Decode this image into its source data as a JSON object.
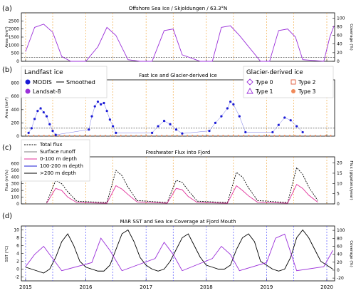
{
  "x_axis": {
    "years": [
      "2015",
      "2016",
      "2017",
      "2018",
      "2019",
      "2020"
    ],
    "range": [
      2014.93,
      2020.13
    ]
  },
  "chart_data": [
    {
      "panel": "(a)",
      "type": "line",
      "title": "Offshore Sea Ice / Skjoldungen / 63.3°N",
      "ylabel_left": "Area (km²)",
      "ylabel_right": "Coverage (%)",
      "ylim": [
        0,
        3000
      ],
      "yticks": [
        "0",
        "500",
        "1000",
        "1500",
        "2000",
        "2500"
      ],
      "y2ticks": [
        "0",
        "20",
        "40",
        "60",
        "80",
        "100"
      ],
      "threshold": 250,
      "series": [
        {
          "name": "Smoothed",
          "color": "#9b30d9",
          "x": [
            2015.0,
            2015.15,
            2015.3,
            2015.45,
            2015.6,
            2015.75,
            2016.0,
            2016.2,
            2016.35,
            2016.5,
            2016.7,
            2016.9,
            2017.1,
            2017.3,
            2017.45,
            2017.6,
            2017.9,
            2018.1,
            2018.25,
            2018.4,
            2018.55,
            2018.9,
            2019.05,
            2019.2,
            2019.35,
            2019.48,
            2019.6,
            2019.95,
            2020.05,
            2020.12
          ],
          "y": [
            600,
            2100,
            2300,
            1800,
            300,
            0,
            0,
            900,
            2100,
            1600,
            100,
            0,
            0,
            1900,
            2000,
            400,
            0,
            0,
            2100,
            2200,
            1600,
            0,
            0,
            1900,
            2000,
            1500,
            100,
            0,
            1500,
            2200
          ]
        }
      ]
    },
    {
      "panel": "(b)",
      "type": "scatter",
      "title": "Fast Ice and Glacier-derived Ice",
      "ylabel_left": "Area (km²)",
      "ylim": [
        0,
        850
      ],
      "yticks": [
        "0",
        "200",
        "400",
        "600",
        "800"
      ],
      "threshold": 120,
      "legend_landfast": {
        "title": "Landfast ice",
        "items": [
          "MODIS",
          "Landsat-8",
          "Smoothed"
        ]
      },
      "legend_glacier": {
        "title": "Glacier-derived ice",
        "items": [
          "Type 0",
          "Type 1",
          "Type 2",
          "Type 3"
        ]
      },
      "series": [
        {
          "name": "MODIS",
          "color": "#1a1ad6",
          "x": [
            2015.05,
            2015.1,
            2015.15,
            2015.2,
            2015.25,
            2015.3,
            2015.35,
            2015.4,
            2015.45,
            2015.5,
            2016.05,
            2016.1,
            2016.15,
            2016.2,
            2016.25,
            2016.3,
            2016.35,
            2016.4,
            2016.45,
            2016.5,
            2017.1,
            2017.2,
            2017.3,
            2017.4,
            2017.5,
            2017.6,
            2018.05,
            2018.15,
            2018.25,
            2018.35,
            2018.4,
            2018.45,
            2018.55,
            2018.65,
            2019.1,
            2019.2,
            2019.3,
            2019.4,
            2019.5,
            2019.6
          ],
          "y": [
            50,
            120,
            260,
            380,
            420,
            360,
            300,
            180,
            80,
            20,
            100,
            300,
            450,
            520,
            480,
            500,
            380,
            250,
            150,
            50,
            50,
            150,
            230,
            180,
            100,
            40,
            80,
            200,
            300,
            420,
            520,
            480,
            300,
            60,
            60,
            170,
            280,
            240,
            150,
            60
          ]
        }
      ]
    },
    {
      "panel": "(c)",
      "type": "line",
      "title": "Freshwater Flux into Fjord",
      "ylabel_left": "Flux (m³/s)",
      "ylabel_right": "Flux (gigatons/year)",
      "ylim": [
        0,
        700
      ],
      "yticks": [
        "0",
        "100",
        "200",
        "300",
        "400",
        "500",
        "600"
      ],
      "y2ticks": [
        "0",
        "5",
        "10",
        "15",
        "20"
      ],
      "legend": [
        "Total flux",
        "Surface runoff",
        "0-100 m depth",
        "100-200 m depth",
        ">200 m depth"
      ],
      "series": [
        {
          "name": "Total flux",
          "dash": "dashed",
          "x": [
            2015.35,
            2015.5,
            2015.6,
            2015.7,
            2015.85,
            2016.35,
            2016.5,
            2016.6,
            2016.7,
            2016.85,
            2017.35,
            2017.5,
            2017.6,
            2017.7,
            2017.85,
            2018.35,
            2018.5,
            2018.6,
            2018.7,
            2018.85,
            2019.35,
            2019.5,
            2019.6,
            2019.7,
            2019.85
          ],
          "y": [
            20,
            350,
            300,
            180,
            40,
            20,
            500,
            420,
            250,
            50,
            20,
            350,
            320,
            200,
            40,
            20,
            470,
            400,
            240,
            50,
            20,
            540,
            440,
            250,
            50
          ]
        },
        {
          "name": "0-100 m depth",
          "color": "#e0309a",
          "x": [
            2015.35,
            2015.5,
            2015.6,
            2015.7,
            2015.85,
            2016.35,
            2016.5,
            2016.6,
            2016.7,
            2016.85,
            2017.35,
            2017.5,
            2017.6,
            2017.7,
            2017.85,
            2018.35,
            2018.5,
            2018.6,
            2018.7,
            2018.85,
            2019.35,
            2019.5,
            2019.6,
            2019.7,
            2019.85
          ],
          "y": [
            10,
            230,
            200,
            100,
            20,
            10,
            270,
            220,
            140,
            30,
            10,
            230,
            210,
            110,
            20,
            10,
            270,
            200,
            120,
            25,
            10,
            290,
            230,
            130,
            25
          ]
        }
      ]
    },
    {
      "panel": "(d)",
      "type": "line",
      "title": "MAR SST and Sea Ice Coverage at Fjord Mouth",
      "ylabel_left": "SST (°C)",
      "ylabel_right": "Coverage (%)",
      "ylim": [
        -3,
        11
      ],
      "yticks": [
        "-2",
        "0",
        "2",
        "4",
        "6",
        "8",
        "10"
      ],
      "y2ticks": [
        "-20",
        "0",
        "20",
        "40",
        "60",
        "80",
        "100"
      ],
      "series": [
        {
          "name": "SST",
          "color": "#000000",
          "x": [
            2015.0,
            2015.1,
            2015.2,
            2015.3,
            2015.4,
            2015.5,
            2015.6,
            2015.7,
            2015.8,
            2015.9,
            2016.0,
            2016.1,
            2016.2,
            2016.3,
            2016.4,
            2016.5,
            2016.6,
            2016.7,
            2016.8,
            2016.9,
            2017.0,
            2017.1,
            2017.2,
            2017.3,
            2017.4,
            2017.5,
            2017.6,
            2017.7,
            2017.8,
            2017.9,
            2018.0,
            2018.1,
            2018.2,
            2018.3,
            2018.4,
            2018.5,
            2018.6,
            2018.7,
            2018.8,
            2018.9,
            2019.0,
            2019.1,
            2019.2,
            2019.3,
            2019.4,
            2019.5,
            2019.6,
            2019.7,
            2019.8,
            2019.9,
            2020.0,
            2020.1
          ],
          "y": [
            0.5,
            0,
            -0.5,
            -1,
            0,
            3,
            7,
            9,
            6,
            2,
            0.5,
            0,
            -0.5,
            -0.5,
            1,
            5,
            9,
            10,
            7,
            3,
            1,
            0,
            -0.5,
            0,
            2,
            5,
            8,
            9,
            6,
            3,
            1,
            0.5,
            0,
            0,
            1,
            5,
            8,
            9,
            7,
            2,
            1,
            0,
            -0.5,
            0,
            3,
            8,
            10,
            8,
            5,
            2,
            1,
            0
          ]
        },
        {
          "name": "Coverage",
          "color": "#9b30d9",
          "x": [
            2015.0,
            2015.15,
            2015.3,
            2015.45,
            2015.6,
            2016.1,
            2016.25,
            2016.4,
            2016.6,
            2017.15,
            2017.3,
            2017.45,
            2017.6,
            2018.1,
            2018.25,
            2018.4,
            2018.55,
            2019.0,
            2019.15,
            2019.3,
            2019.5,
            2019.95,
            2020.1
          ],
          "y": [
            10,
            40,
            60,
            30,
            0,
            20,
            80,
            50,
            0,
            30,
            70,
            40,
            0,
            30,
            60,
            40,
            0,
            20,
            80,
            90,
            0,
            10,
            50
          ]
        }
      ]
    }
  ]
}
